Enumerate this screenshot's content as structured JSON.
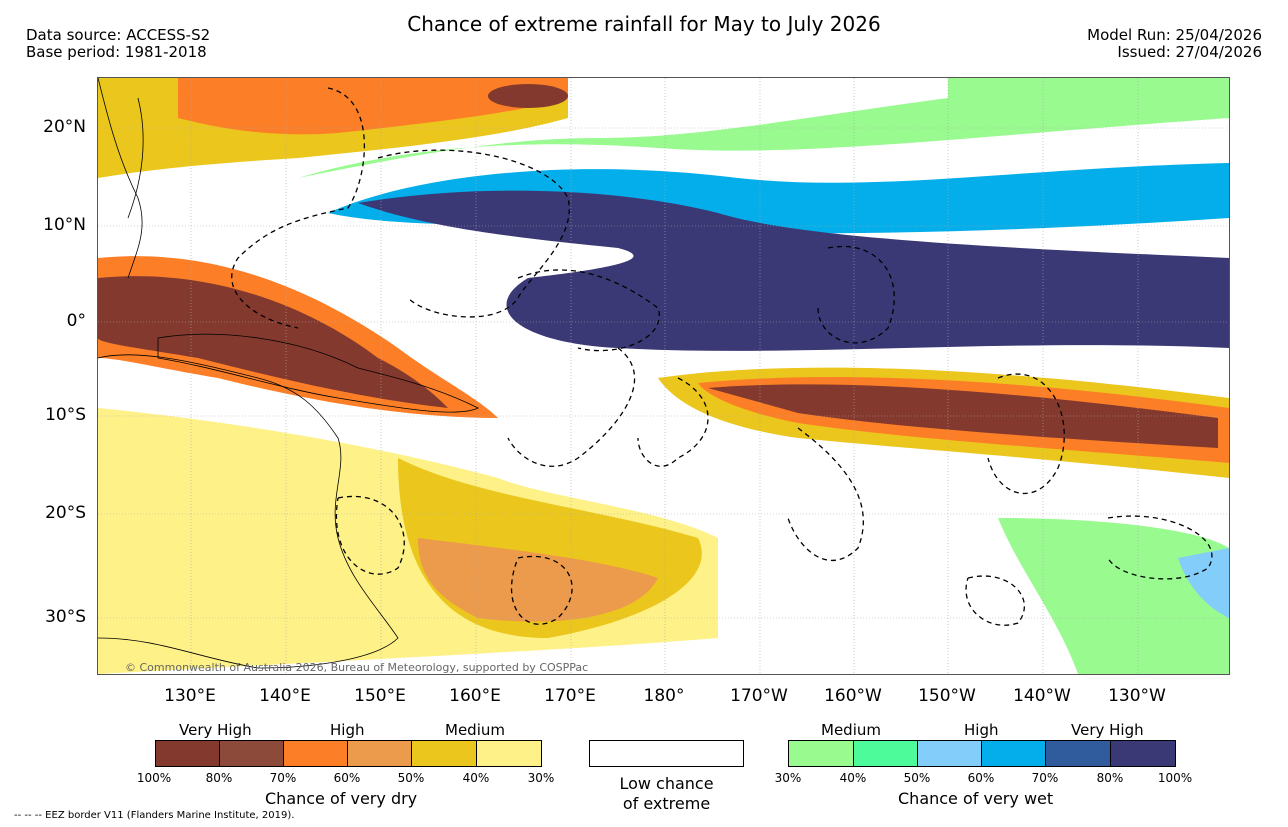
{
  "title": "Chance of extreme rainfall for May to July 2026",
  "header": {
    "data_source": "Data source: ACCESS-S2",
    "base_period": "Base period: 1981-2018",
    "model_run": "Model Run: 25/04/2026",
    "issued": "Issued: 27/04/2026"
  },
  "map": {
    "lat_labels": [
      "20°N",
      "10°N",
      "0°",
      "10°S",
      "20°S",
      "30°S"
    ],
    "lon_labels": [
      "130°E",
      "140°E",
      "150°E",
      "160°E",
      "170°E",
      "180°",
      "170°W",
      "160°W",
      "150°W",
      "140°W",
      "130°W"
    ],
    "copyright": "© Commonwealth of Australia 2026, Bureau of Meteorology, supported by COSPPac"
  },
  "legend": {
    "dry": {
      "level_labels": [
        "Very High",
        "High",
        "Medium"
      ],
      "percent_labels": [
        "100%",
        "80%",
        "70%",
        "60%",
        "50%",
        "40%",
        "30%"
      ],
      "colors": [
        "#84392e",
        "#8b4a3a",
        "#fc7f27",
        "#ec9a4b",
        "#ebc61c",
        "#fdf187"
      ],
      "caption": "Chance of very dry"
    },
    "low": {
      "caption_line1": "Low chance",
      "caption_line2": "of extreme"
    },
    "wet": {
      "level_labels": [
        "Medium",
        "High",
        "Very High"
      ],
      "percent_labels": [
        "30%",
        "40%",
        "50%",
        "60%",
        "70%",
        "80%",
        "100%"
      ],
      "colors": [
        "#98fa8f",
        "#4efb9a",
        "#83cdfb",
        "#04aeea",
        "#305b9c",
        "#3b3975"
      ],
      "caption": "Chance of very wet"
    }
  },
  "footnote": "--  --  -- EEZ border V11 (Flanders Marine Institute, 2019)."
}
